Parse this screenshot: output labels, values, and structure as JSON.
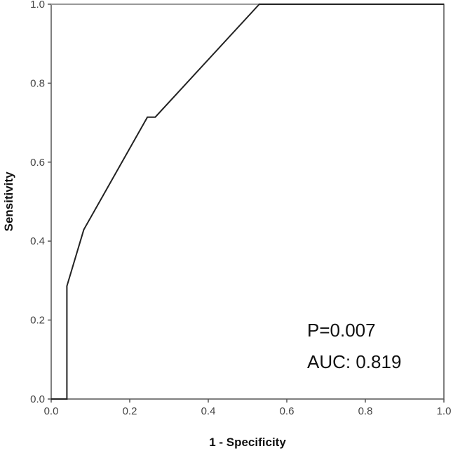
{
  "chart_data": {
    "type": "line",
    "xlabel": "1 - Specificity",
    "ylabel": "Sensitivity",
    "xlim": [
      0,
      1
    ],
    "ylim": [
      0,
      1
    ],
    "x_ticks": [
      "0.0",
      "0.2",
      "0.4",
      "0.6",
      "0.8",
      "1.0"
    ],
    "y_ticks": [
      "0.0",
      "0.2",
      "0.4",
      "0.6",
      "0.8",
      "1.0"
    ],
    "grid": false,
    "series": [
      {
        "x": [
          0.0,
          0.04,
          0.04,
          0.083,
          0.245,
          0.265,
          0.53,
          1.0
        ],
        "y": [
          0.0,
          0.0,
          0.286,
          0.429,
          0.714,
          0.714,
          1.0,
          1.0
        ],
        "color": "#222222"
      }
    ],
    "annotations": [
      {
        "text": "P=0.007"
      },
      {
        "text": "AUC: 0.819"
      }
    ]
  }
}
